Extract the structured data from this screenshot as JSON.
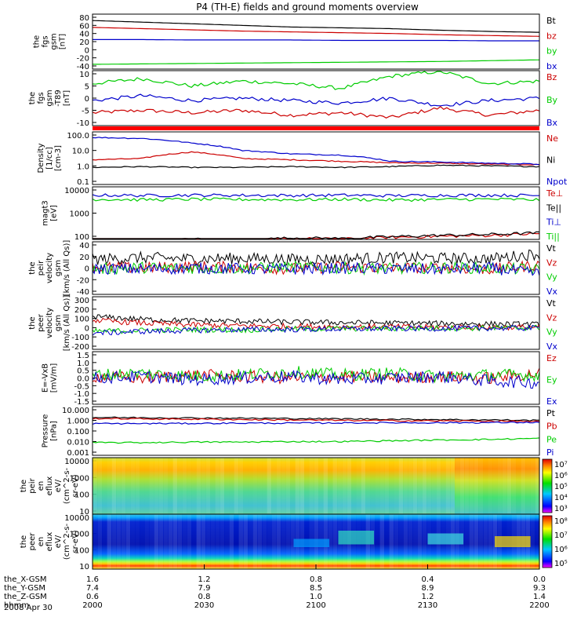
{
  "title": "P4 (TH-E) fields and ground moments overview",
  "date": "2008 Apr 30",
  "chart_data": {
    "type": "line",
    "x_axis": {
      "row_labels": [
        "the_X-GSM",
        "the_Y-GSM",
        "the_Z-GSM",
        "hhmm"
      ],
      "columns": [
        [
          "1.6",
          "7.4",
          "0.6",
          "2000"
        ],
        [
          "1.2",
          "7.9",
          "0.8",
          "2030"
        ],
        [
          "0.8",
          "8.5",
          "1.0",
          "2100"
        ],
        [
          "0.4",
          "8.9",
          "1.2",
          "2130"
        ],
        [
          "0.0",
          "9.3",
          "1.4",
          "2200"
        ]
      ]
    },
    "panels": [
      {
        "ylabel": [
          "the",
          "fgs",
          "gsm",
          "[nT]"
        ],
        "yticks": [
          "80",
          "60",
          "40",
          "20",
          "0",
          "-20",
          "-40"
        ],
        "series": [
          {
            "name": "Bt",
            "color": "#000000",
            "values": [
              72,
              68,
              64,
              60,
              56,
              54,
              52,
              48,
              45,
              43
            ]
          },
          {
            "name": "bz",
            "color": "#cc0000",
            "values": [
              55,
              52,
              49,
              46,
              44,
              42,
              40,
              37,
              35,
              33
            ]
          },
          {
            "name": "by",
            "color": "#00cc00",
            "values": [
              -36,
              -35,
              -34,
              -33,
              -32,
              -31,
              -30,
              -29,
              -27,
              -25
            ]
          },
          {
            "name": "bx",
            "color": "#0000cc",
            "values": [
              25,
              25,
              24,
              24,
              24,
              23,
              23,
              23,
              22,
              22
            ]
          }
        ]
      },
      {
        "ylabel": [
          "the",
          "fgs",
          "gsm",
          "-T89",
          "[nT]"
        ],
        "yticks": [
          "10",
          "5",
          "0",
          "-5",
          "-10"
        ],
        "series": [
          {
            "name": "Bz",
            "color": "#cc0000",
            "values": [
              -6,
              -5,
              -6,
              -5,
              -7,
              -6,
              -8,
              -4,
              -7,
              -5
            ]
          },
          {
            "name": "By",
            "color": "#00cc00",
            "values": [
              6,
              8,
              5,
              7,
              6,
              4,
              9,
              11,
              6,
              7
            ]
          },
          {
            "name": "Bx",
            "color": "#0000cc",
            "values": [
              -1,
              1,
              -1,
              0,
              -1,
              -2,
              0,
              -3,
              -1,
              0
            ]
          }
        ]
      },
      {
        "ylabel": [
          "Density",
          "[1/cc]",
          "[cm-3]"
        ],
        "yticks": [
          "100.0",
          "10.0",
          "1.0",
          "0.1"
        ],
        "series": [
          {
            "name": "Ne",
            "color": "#cc0000",
            "values": [
              2.5,
              3,
              8,
              3,
              2.5,
              2,
              1.6,
              1.5,
              1.3,
              1.2
            ]
          },
          {
            "name": "Ni",
            "color": "#000000",
            "values": [
              0.8,
              0.9,
              0.8,
              0.8,
              0.9,
              0.8,
              0.9,
              1.1,
              1.0,
              0.9
            ]
          },
          {
            "name": "Npot",
            "color": "#0000cc",
            "values": [
              70,
              60,
              30,
              10,
              6,
              5,
              2,
              1.8,
              1.5,
              1.3
            ]
          }
        ]
      },
      {
        "ylabel": [
          "magt3",
          "[eV]"
        ],
        "yticks": [
          "10000",
          "1000",
          "100"
        ],
        "series": [
          {
            "name": "Te⊥",
            "color": "#cc0000",
            "values": [
              60,
              50,
              70,
              60,
              80,
              75,
              90,
              100,
              110,
              130
            ]
          },
          {
            "name": "Te||",
            "color": "#000000",
            "values": [
              65,
              55,
              75,
              65,
              85,
              80,
              95,
              110,
              120,
              140
            ]
          },
          {
            "name": "Ti⊥",
            "color": "#0000cc",
            "values": [
              6000,
              5800,
              6000,
              5900,
              5800,
              6000,
              5700,
              5900,
              6000,
              5800
            ]
          },
          {
            "name": "Ti||",
            "color": "#00cc00",
            "values": [
              4000,
              3800,
              4000,
              3900,
              3800,
              4000,
              3700,
              3900,
              4000,
              3800
            ]
          }
        ]
      },
      {
        "ylabel": [
          "the",
          "peir",
          "velocity",
          "gsm",
          "[km/s (All Qs)]"
        ],
        "yticks": [
          "40",
          "20",
          "0",
          "-20",
          "-40"
        ],
        "series": [
          {
            "name": "Vt",
            "color": "#000000",
            "values": [
              15,
              18,
              16,
              17,
              15,
              16,
              18,
              17,
              16,
              25
            ]
          },
          {
            "name": "Vz",
            "color": "#cc0000",
            "values": [
              2,
              0,
              3,
              1,
              -1,
              2,
              0,
              1,
              -2,
              5
            ]
          },
          {
            "name": "Vy",
            "color": "#00cc00",
            "values": [
              -2,
              1,
              0,
              -1,
              2,
              0,
              -1,
              1,
              0,
              -3
            ]
          },
          {
            "name": "Vx",
            "color": "#0000cc",
            "values": [
              -1,
              -2,
              0,
              -1,
              -2,
              0,
              -1,
              -2,
              0,
              -10
            ]
          }
        ]
      },
      {
        "ylabel": [
          "the",
          "peer",
          "velocity",
          "gsm",
          "[km/s (All Qs)]"
        ],
        "yticks": [
          "300",
          "200",
          "100",
          "0",
          "-100",
          "-200"
        ],
        "series": [
          {
            "name": "Vt",
            "color": "#000000",
            "values": [
              120,
              90,
              75,
              70,
              60,
              55,
              50,
              45,
              40,
              35
            ]
          },
          {
            "name": "Vz",
            "color": "#cc0000",
            "values": [
              80,
              50,
              30,
              20,
              15,
              10,
              10,
              5,
              5,
              5
            ]
          },
          {
            "name": "Vy",
            "color": "#00cc00",
            "values": [
              -40,
              -30,
              -20,
              -25,
              -15,
              -10,
              -10,
              -5,
              -5,
              0
            ]
          },
          {
            "name": "Vx",
            "color": "#0000cc",
            "values": [
              -60,
              -40,
              -30,
              -20,
              -20,
              -15,
              -10,
              -10,
              -5,
              -5
            ]
          }
        ]
      },
      {
        "ylabel": [
          "E=-VxB",
          "[mV/m]"
        ],
        "yticks": [
          "1.5",
          "1.0",
          "0.5",
          "0.0",
          "-0.5",
          "-1.0",
          "-1.5"
        ],
        "series": [
          {
            "name": "Ez",
            "color": "#cc0000",
            "values": [
              0.1,
              0,
              0.2,
              0.1,
              0,
              0.1,
              0,
              0.1,
              0,
              0.3
            ]
          },
          {
            "name": "Ey",
            "color": "#00cc00",
            "values": [
              0.2,
              0.3,
              0.1,
              0.2,
              0.4,
              0.2,
              0.3,
              0.1,
              0.2,
              0.2
            ]
          },
          {
            "name": "Ex",
            "color": "#0000cc",
            "values": [
              0,
              0.1,
              -0.1,
              0,
              0.1,
              -0.1,
              0,
              0.1,
              -0.2,
              -0.3
            ]
          }
        ]
      },
      {
        "ylabel": [
          "Pressure",
          "[nPa]"
        ],
        "yticks": [
          "10.000",
          "1.000",
          "0.100",
          "0.010",
          "0.001"
        ],
        "series": [
          {
            "name": "Pt",
            "color": "#000000",
            "values": [
              1.9,
              1.8,
              1.7,
              1.6,
              1.5,
              1.4,
              1.3,
              1.2,
              1.1,
              1.0
            ]
          },
          {
            "name": "Pb",
            "color": "#cc0000",
            "values": [
              1.5,
              1.4,
              1.3,
              1.2,
              1.1,
              1.0,
              0.95,
              0.9,
              0.85,
              0.8
            ]
          },
          {
            "name": "Pe",
            "color": "#00cc00",
            "values": [
              0.008,
              0.008,
              0.009,
              0.009,
              0.01,
              0.01,
              0.012,
              0.014,
              0.016,
              0.02
            ]
          },
          {
            "name": "Pi",
            "color": "#0000cc",
            "values": [
              0.5,
              0.5,
              0.52,
              0.55,
              0.55,
              0.58,
              0.6,
              0.6,
              0.62,
              0.65
            ]
          }
        ]
      },
      {
        "type": "heatmap",
        "ylabel": [
          "the",
          "peir",
          "en",
          "eflux",
          "eV/",
          "(cm^2-s-",
          "sr-eV)"
        ],
        "yticks": [
          "10000",
          "1000",
          "100",
          "10"
        ],
        "colorbar_ticks": [
          "10⁷",
          "10⁶",
          "10⁵",
          "10⁴",
          "10³"
        ]
      },
      {
        "type": "heatmap",
        "ylabel": [
          "the",
          "peer",
          "en",
          "eflux",
          "eV/",
          "(cm^2-s-",
          "sr-eV)"
        ],
        "yticks": [
          "10000",
          "1000",
          "100",
          "10"
        ],
        "colorbar_ticks": [
          "10⁸",
          "10⁷",
          "10⁶",
          "10⁵"
        ]
      }
    ]
  }
}
